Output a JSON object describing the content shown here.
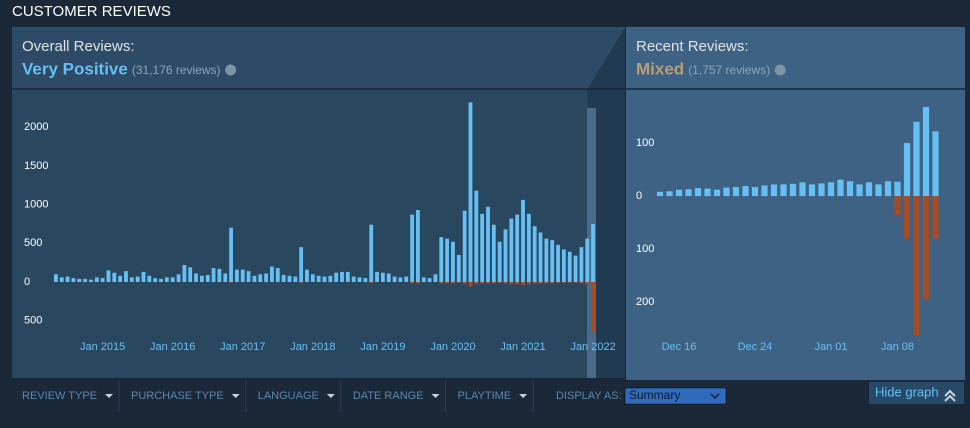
{
  "header": {
    "title": "CUSTOMER REVIEWS"
  },
  "overall": {
    "label": "Overall Reviews:",
    "rating": "Very Positive",
    "count": "(31,176 reviews)"
  },
  "recent": {
    "label": "Recent Reviews:",
    "rating": "Mixed",
    "count": "(1,757 reviews)"
  },
  "chart_data": [
    {
      "type": "bar",
      "categories": [
        null,
        null,
        null,
        null,
        null,
        null,
        null,
        null,
        "Jan 2015",
        null,
        null,
        null,
        null,
        null,
        null,
        null,
        null,
        null,
        null,
        null,
        "Jan 2016",
        null,
        null,
        null,
        null,
        null,
        null,
        null,
        null,
        null,
        null,
        null,
        "Jan 2017",
        null,
        null,
        null,
        null,
        null,
        null,
        null,
        null,
        null,
        null,
        null,
        "Jan 2018",
        null,
        null,
        null,
        null,
        null,
        null,
        null,
        null,
        null,
        null,
        null,
        "Jan 2019",
        null,
        null,
        null,
        null,
        null,
        null,
        null,
        null,
        null,
        null,
        null,
        "Jan 2020",
        null,
        null,
        null,
        null,
        null,
        null,
        null,
        null,
        null,
        null,
        null,
        "Jan 2021",
        null,
        null,
        null,
        null,
        null,
        null,
        null,
        null,
        null,
        null,
        null,
        "Jan 2022"
      ],
      "series": [
        {
          "color": "#66c0f4",
          "values": [
            100,
            60,
            70,
            50,
            40,
            40,
            30,
            60,
            50,
            150,
            120,
            80,
            140,
            60,
            70,
            130,
            80,
            50,
            40,
            60,
            60,
            100,
            220,
            190,
            110,
            80,
            90,
            180,
            170,
            110,
            700,
            160,
            160,
            140,
            80,
            100,
            110,
            200,
            180,
            90,
            80,
            70,
            450,
            160,
            100,
            80,
            70,
            80,
            120,
            130,
            130,
            70,
            60,
            50,
            740,
            130,
            120,
            110,
            70,
            60,
            70,
            870,
            930,
            60,
            50,
            100,
            580,
            560,
            520,
            350,
            920,
            2320,
            1180,
            880,
            970,
            740,
            520,
            680,
            820,
            870,
            1060,
            880,
            720,
            640,
            560,
            540,
            480,
            420,
            390,
            340,
            450,
            560,
            750
          ]
        },
        {
          "color": "#a34c25",
          "values": [
            0,
            0,
            0,
            0,
            0,
            0,
            0,
            0,
            0,
            0,
            0,
            0,
            0,
            0,
            0,
            0,
            0,
            0,
            0,
            0,
            0,
            0,
            0,
            0,
            0,
            0,
            0,
            0,
            0,
            0,
            -10,
            0,
            0,
            0,
            0,
            0,
            0,
            0,
            0,
            0,
            0,
            0,
            -10,
            0,
            0,
            0,
            0,
            0,
            0,
            0,
            0,
            0,
            0,
            0,
            -10,
            0,
            0,
            0,
            0,
            0,
            0,
            -20,
            -20,
            0,
            0,
            0,
            -20,
            -20,
            -20,
            -10,
            -30,
            -60,
            -30,
            -20,
            -20,
            -20,
            -10,
            -20,
            -30,
            -30,
            -40,
            -30,
            -20,
            -20,
            -20,
            -20,
            -10,
            -10,
            -10,
            -10,
            -20,
            -30,
            -650
          ]
        }
      ],
      "ylim": [
        -1240,
        2480
      ],
      "yticks": [
        2000,
        1500,
        1000,
        500,
        0,
        {
          "value": -500,
          "label": "500"
        }
      ]
    },
    {
      "type": "bar",
      "categories": [
        null,
        null,
        "Dec 16",
        null,
        null,
        null,
        null,
        null,
        null,
        null,
        "Dec 24",
        null,
        null,
        null,
        null,
        null,
        null,
        null,
        "Jan 01",
        null,
        null,
        null,
        null,
        null,
        null,
        "Jan 08",
        null,
        null,
        null,
        null
      ],
      "series": [
        {
          "color": "#66c0f4",
          "values": [
            8,
            9,
            12,
            13,
            15,
            14,
            12,
            16,
            17,
            19,
            17,
            20,
            22,
            22,
            23,
            26,
            22,
            24,
            26,
            31,
            28,
            22,
            26,
            22,
            28,
            27,
            100,
            140,
            168,
            122
          ]
        },
        {
          "color": "#a34c25",
          "values": [
            0,
            0,
            0,
            0,
            0,
            0,
            0,
            0,
            0,
            0,
            0,
            0,
            0,
            0,
            0,
            0,
            0,
            0,
            0,
            0,
            0,
            0,
            0,
            0,
            0,
            -36,
            -80,
            -262,
            -195,
            -80
          ]
        }
      ],
      "ylim": [
        -343,
        200
      ],
      "yticks": [
        100,
        0,
        {
          "value": -100,
          "label": "100"
        },
        {
          "value": -200,
          "label": "200"
        }
      ]
    }
  ],
  "filters": [
    "REVIEW TYPE",
    "PURCHASE TYPE",
    "LANGUAGE",
    "DATE RANGE",
    "PLAYTIME"
  ],
  "display_as": {
    "label": "DISPLAY AS:",
    "value": "Summary"
  },
  "hide_graph": "Hide graph"
}
